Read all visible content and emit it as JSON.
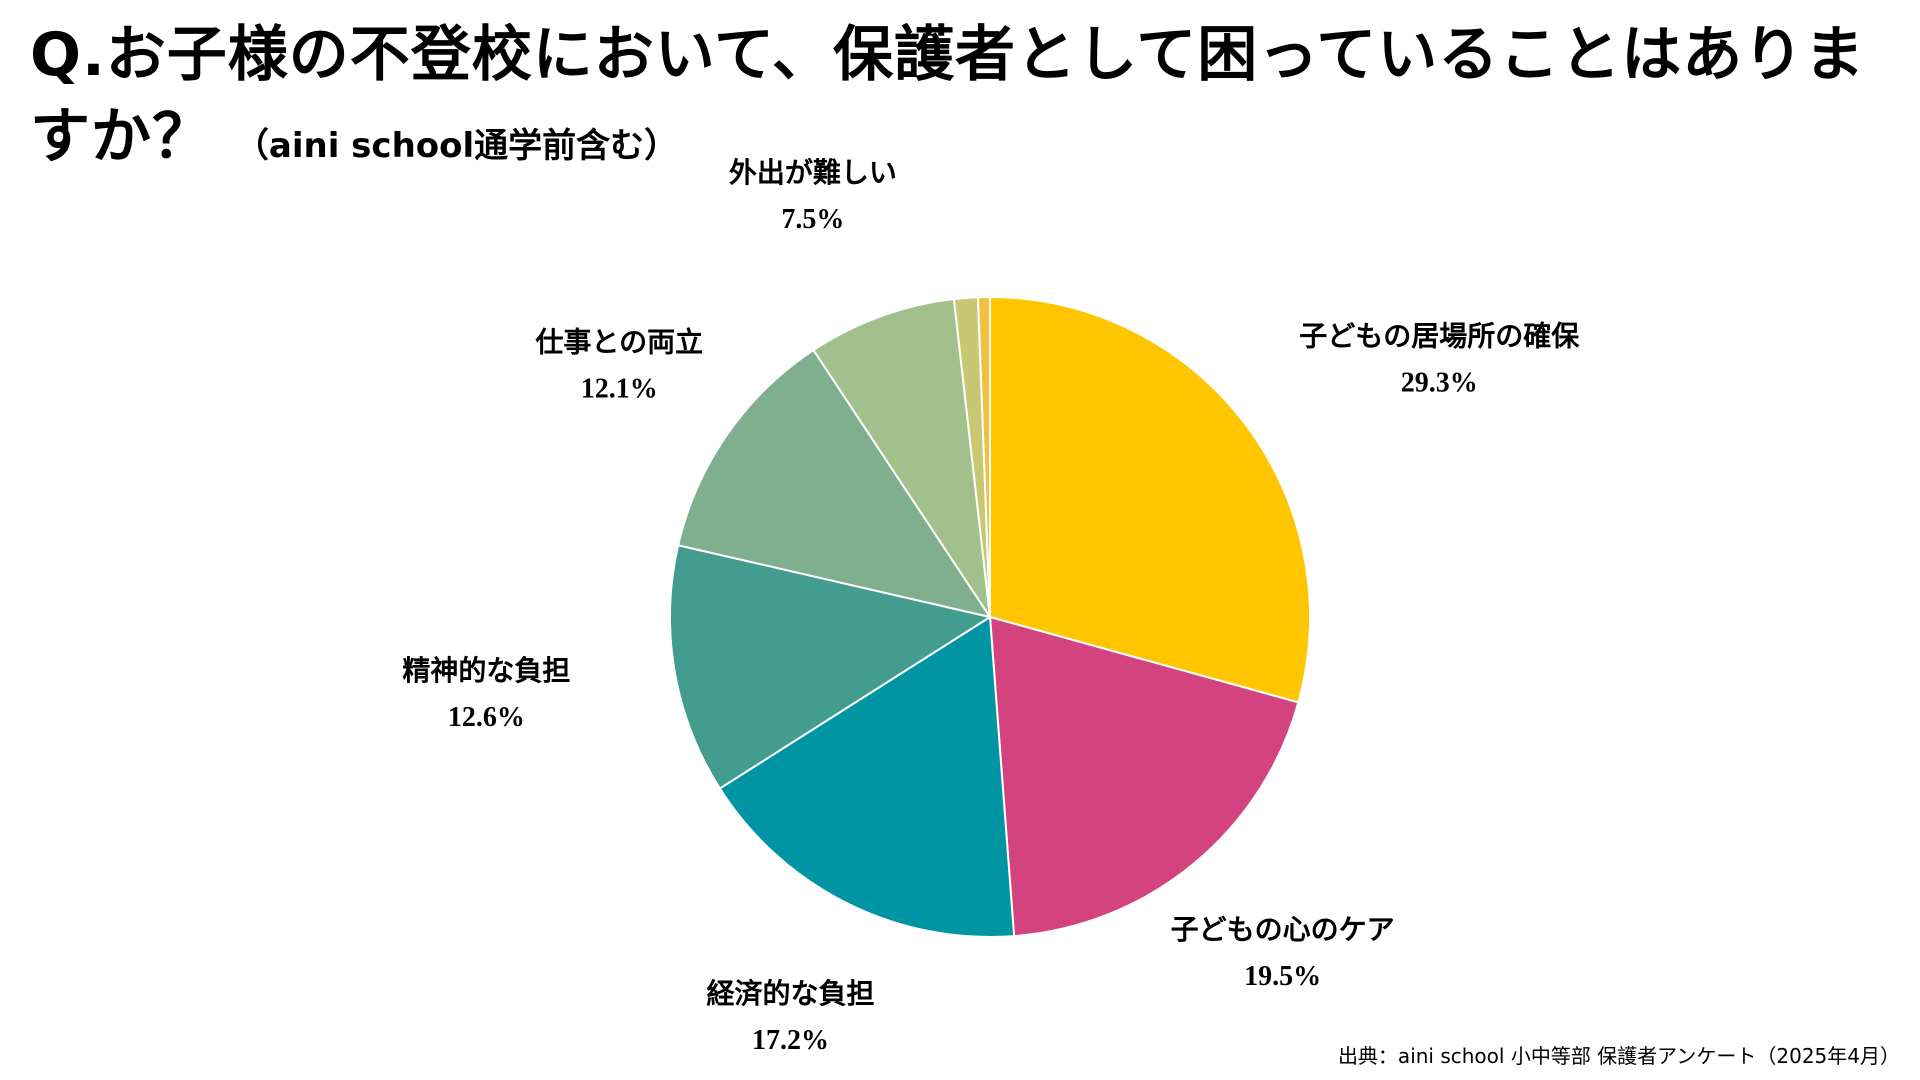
{
  "header": {
    "title": "Q.お子様の不登校において、保護者として困っていることはありますか？",
    "subtitle": "（aini school通学前含む）"
  },
  "chart_data": {
    "type": "pie",
    "title": "Q.お子様の不登校において、保護者として困っていることはありますか？",
    "subtitle": "（aini school通学前含む）",
    "slices": [
      {
        "label": "子どもの居場所の確保",
        "value": 29.3,
        "value_label": "29.3%",
        "color": "#FFC600"
      },
      {
        "label": "子どもの心のケア",
        "value": 19.5,
        "value_label": "19.5%",
        "color": "#D34380"
      },
      {
        "label": "経済的な負担",
        "value": 17.2,
        "value_label": "17.2%",
        "color": "#0095A3"
      },
      {
        "label": "精神的な負担",
        "value": 12.6,
        "value_label": "12.6%",
        "color": "#439D8E"
      },
      {
        "label": "仕事との両立",
        "value": 12.1,
        "value_label": "12.1%",
        "color": "#80AF90"
      },
      {
        "label": "外出が難しい",
        "value": 7.5,
        "value_label": "7.5%",
        "color": "#A1C08B"
      },
      {
        "label": "",
        "value": 1.2,
        "value_label": "",
        "color": "#C9C872"
      },
      {
        "label": "",
        "value": 0.6,
        "value_label": "",
        "color": "#F0C040"
      }
    ],
    "start_angle_deg": 0,
    "direction": "clockwise",
    "legend": "none"
  },
  "footer": {
    "source": "出典：aini school 小中等部 保護者アンケート（2025年4月）"
  }
}
